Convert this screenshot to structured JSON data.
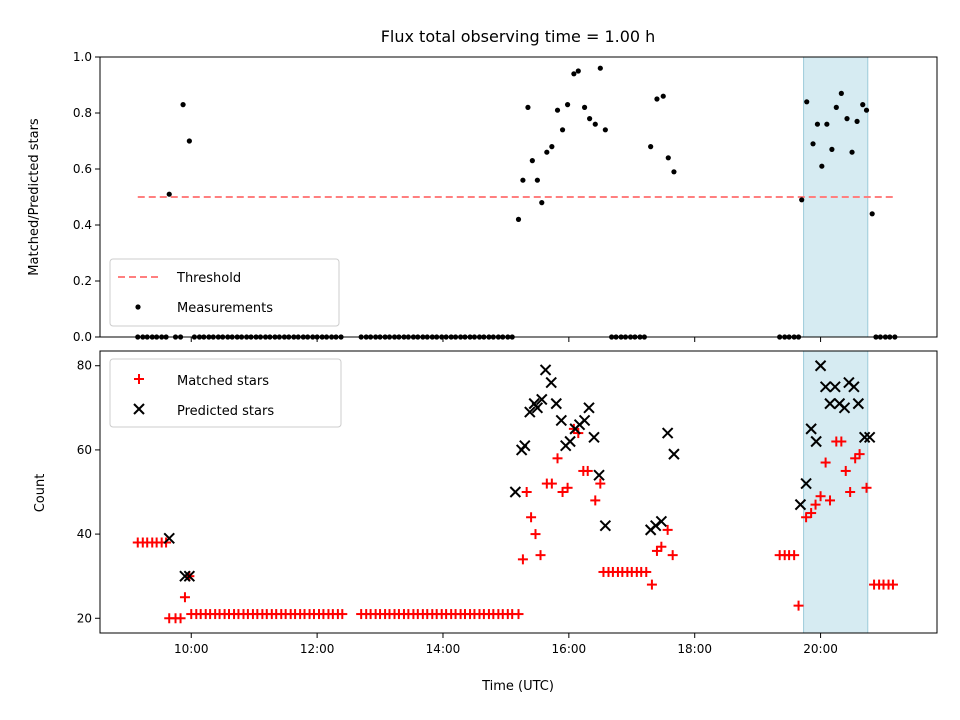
{
  "chart_data": [
    {
      "type": "scatter",
      "title": "Flux total observing time = 1.00 h",
      "ylabel": "Matched/Predicted stars",
      "ylim": [
        0,
        1.0
      ],
      "yticks": [
        "0.0",
        "0.2",
        "0.4",
        "0.6",
        "0.8",
        "1.0"
      ],
      "x_unit": "hours UTC",
      "xlim": [
        8.55,
        21.85
      ],
      "highlight_span": [
        19.73,
        20.75
      ],
      "threshold": {
        "name": "Threshold",
        "value": 0.5,
        "x_range": [
          9.15,
          21.2
        ],
        "color": "#ff7f7f",
        "style": "dashed"
      },
      "series": [
        {
          "name": "Measurements",
          "color": "#000000",
          "marker": "dot",
          "points": [
            [
              9.65,
              0.51
            ],
            [
              9.87,
              0.83
            ],
            [
              9.97,
              0.7
            ],
            [
              15.2,
              0.42
            ],
            [
              15.27,
              0.56
            ],
            [
              15.35,
              0.82
            ],
            [
              15.42,
              0.63
            ],
            [
              15.5,
              0.56
            ],
            [
              15.57,
              0.48
            ],
            [
              15.65,
              0.66
            ],
            [
              15.73,
              0.68
            ],
            [
              15.82,
              0.81
            ],
            [
              15.9,
              0.74
            ],
            [
              15.98,
              0.83
            ],
            [
              16.08,
              0.94
            ],
            [
              16.15,
              0.95
            ],
            [
              16.25,
              0.82
            ],
            [
              16.33,
              0.78
            ],
            [
              16.42,
              0.76
            ],
            [
              16.5,
              0.96
            ],
            [
              16.58,
              0.74
            ],
            [
              17.3,
              0.68
            ],
            [
              17.4,
              0.85
            ],
            [
              17.5,
              0.86
            ],
            [
              17.58,
              0.64
            ],
            [
              17.67,
              0.59
            ],
            [
              19.7,
              0.49
            ],
            [
              19.78,
              0.84
            ],
            [
              19.88,
              0.69
            ],
            [
              19.95,
              0.76
            ],
            [
              20.02,
              0.61
            ],
            [
              20.1,
              0.76
            ],
            [
              20.18,
              0.67
            ],
            [
              20.25,
              0.82
            ],
            [
              20.33,
              0.87
            ],
            [
              20.42,
              0.78
            ],
            [
              20.5,
              0.66
            ],
            [
              20.58,
              0.77
            ],
            [
              20.67,
              0.83
            ],
            [
              20.73,
              0.81
            ],
            [
              20.82,
              0.44
            ]
          ],
          "zero_points": [
            9.15,
            9.23,
            9.3,
            9.38,
            9.45,
            9.53,
            9.6,
            9.75,
            9.83,
            10.05,
            10.13,
            10.2,
            10.28,
            10.35,
            10.43,
            10.5,
            10.58,
            10.65,
            10.73,
            10.8,
            10.88,
            10.95,
            11.03,
            11.1,
            11.18,
            11.25,
            11.33,
            11.4,
            11.48,
            11.55,
            11.63,
            11.7,
            11.78,
            11.85,
            11.93,
            12.0,
            12.08,
            12.15,
            12.23,
            12.3,
            12.38,
            12.7,
            12.78,
            12.85,
            12.93,
            13.0,
            13.08,
            13.15,
            13.23,
            13.3,
            13.38,
            13.45,
            13.53,
            13.6,
            13.68,
            13.75,
            13.83,
            13.9,
            13.98,
            14.05,
            14.13,
            14.2,
            14.28,
            14.35,
            14.43,
            14.5,
            14.58,
            14.65,
            14.73,
            14.8,
            14.88,
            14.95,
            15.03,
            15.1,
            16.68,
            16.75,
            16.83,
            16.9,
            16.98,
            17.05,
            17.13,
            17.2,
            19.35,
            19.43,
            19.5,
            19.58,
            19.65,
            20.88,
            20.95,
            21.03,
            21.1,
            21.18
          ]
        }
      ],
      "legend": {
        "placement": "lower-left",
        "entries": [
          "Threshold",
          "Measurements"
        ]
      }
    },
    {
      "type": "scatter",
      "xlabel": "Time (UTC)",
      "ylabel": "Count",
      "ylim": [
        16.5,
        83.5
      ],
      "yticks": [
        "20",
        "40",
        "60",
        "80"
      ],
      "x_unit": "hours UTC",
      "xlim": [
        8.55,
        21.85
      ],
      "xticks": [
        {
          "value": 10,
          "label": "10:00"
        },
        {
          "value": 12,
          "label": "12:00"
        },
        {
          "value": 14,
          "label": "14:00"
        },
        {
          "value": 16,
          "label": "16:00"
        },
        {
          "value": 18,
          "label": "18:00"
        },
        {
          "value": 20,
          "label": "20:00"
        }
      ],
      "highlight_span": [
        19.73,
        20.75
      ],
      "series": [
        {
          "name": "Matched stars",
          "color": "#ff0000",
          "marker": "plus",
          "points": [
            [
              9.15,
              38
            ],
            [
              9.23,
              38
            ],
            [
              9.3,
              38
            ],
            [
              9.38,
              38
            ],
            [
              9.45,
              38
            ],
            [
              9.53,
              38
            ],
            [
              9.6,
              38
            ],
            [
              9.65,
              20
            ],
            [
              9.75,
              20
            ],
            [
              9.83,
              20
            ],
            [
              9.9,
              25
            ],
            [
              9.97,
              30
            ],
            [
              10.0,
              21
            ],
            [
              10.08,
              21
            ],
            [
              10.15,
              21
            ],
            [
              10.23,
              21
            ],
            [
              10.3,
              21
            ],
            [
              10.38,
              21
            ],
            [
              10.45,
              21
            ],
            [
              10.53,
              21
            ],
            [
              10.6,
              21
            ],
            [
              10.68,
              21
            ],
            [
              10.75,
              21
            ],
            [
              10.83,
              21
            ],
            [
              10.9,
              21
            ],
            [
              10.98,
              21
            ],
            [
              11.05,
              21
            ],
            [
              11.13,
              21
            ],
            [
              11.2,
              21
            ],
            [
              11.28,
              21
            ],
            [
              11.35,
              21
            ],
            [
              11.43,
              21
            ],
            [
              11.5,
              21
            ],
            [
              11.58,
              21
            ],
            [
              11.65,
              21
            ],
            [
              11.73,
              21
            ],
            [
              11.8,
              21
            ],
            [
              11.88,
              21
            ],
            [
              11.95,
              21
            ],
            [
              12.03,
              21
            ],
            [
              12.1,
              21
            ],
            [
              12.18,
              21
            ],
            [
              12.25,
              21
            ],
            [
              12.33,
              21
            ],
            [
              12.4,
              21
            ],
            [
              12.7,
              21
            ],
            [
              12.78,
              21
            ],
            [
              12.85,
              21
            ],
            [
              12.93,
              21
            ],
            [
              13.0,
              21
            ],
            [
              13.08,
              21
            ],
            [
              13.15,
              21
            ],
            [
              13.23,
              21
            ],
            [
              13.3,
              21
            ],
            [
              13.38,
              21
            ],
            [
              13.45,
              21
            ],
            [
              13.53,
              21
            ],
            [
              13.6,
              21
            ],
            [
              13.68,
              21
            ],
            [
              13.75,
              21
            ],
            [
              13.83,
              21
            ],
            [
              13.9,
              21
            ],
            [
              13.98,
              21
            ],
            [
              14.05,
              21
            ],
            [
              14.13,
              21
            ],
            [
              14.2,
              21
            ],
            [
              14.28,
              21
            ],
            [
              14.35,
              21
            ],
            [
              14.43,
              21
            ],
            [
              14.5,
              21
            ],
            [
              14.58,
              21
            ],
            [
              14.65,
              21
            ],
            [
              14.73,
              21
            ],
            [
              14.8,
              21
            ],
            [
              14.88,
              21
            ],
            [
              14.95,
              21
            ],
            [
              15.03,
              21
            ],
            [
              15.1,
              21
            ],
            [
              15.2,
              21
            ],
            [
              15.27,
              34
            ],
            [
              15.33,
              50
            ],
            [
              15.4,
              44
            ],
            [
              15.47,
              40
            ],
            [
              15.55,
              35
            ],
            [
              15.65,
              52
            ],
            [
              15.73,
              52
            ],
            [
              15.82,
              58
            ],
            [
              15.9,
              50
            ],
            [
              15.98,
              51
            ],
            [
              16.08,
              65
            ],
            [
              16.15,
              64
            ],
            [
              16.23,
              55
            ],
            [
              16.3,
              55
            ],
            [
              16.42,
              48
            ],
            [
              16.5,
              52
            ],
            [
              16.55,
              31
            ],
            [
              16.63,
              31
            ],
            [
              16.7,
              31
            ],
            [
              16.78,
              31
            ],
            [
              16.85,
              31
            ],
            [
              16.93,
              31
            ],
            [
              17.0,
              31
            ],
            [
              17.08,
              31
            ],
            [
              17.15,
              31
            ],
            [
              17.23,
              31
            ],
            [
              17.32,
              28
            ],
            [
              17.4,
              36
            ],
            [
              17.47,
              37
            ],
            [
              17.57,
              41
            ],
            [
              17.65,
              35
            ],
            [
              19.35,
              35
            ],
            [
              19.43,
              35
            ],
            [
              19.5,
              35
            ],
            [
              19.58,
              35
            ],
            [
              19.65,
              23
            ],
            [
              19.77,
              44
            ],
            [
              19.85,
              45
            ],
            [
              19.92,
              47
            ],
            [
              20.0,
              49
            ],
            [
              20.08,
              57
            ],
            [
              20.15,
              48
            ],
            [
              20.25,
              62
            ],
            [
              20.33,
              62
            ],
            [
              20.4,
              55
            ],
            [
              20.47,
              50
            ],
            [
              20.55,
              58
            ],
            [
              20.62,
              59
            ],
            [
              20.73,
              51
            ],
            [
              20.85,
              28
            ],
            [
              20.93,
              28
            ],
            [
              21.0,
              28
            ],
            [
              21.08,
              28
            ],
            [
              21.15,
              28
            ]
          ]
        },
        {
          "name": "Predicted stars",
          "color": "#000000",
          "marker": "x",
          "points": [
            [
              9.65,
              39
            ],
            [
              9.9,
              30
            ],
            [
              9.97,
              30
            ],
            [
              15.15,
              50
            ],
            [
              15.25,
              60
            ],
            [
              15.3,
              61
            ],
            [
              15.38,
              69
            ],
            [
              15.45,
              71
            ],
            [
              15.5,
              70
            ],
            [
              15.57,
              72
            ],
            [
              15.63,
              79
            ],
            [
              15.72,
              76
            ],
            [
              15.8,
              71
            ],
            [
              15.88,
              67
            ],
            [
              15.95,
              61
            ],
            [
              16.02,
              62
            ],
            [
              16.1,
              65
            ],
            [
              16.17,
              66
            ],
            [
              16.25,
              67
            ],
            [
              16.32,
              70
            ],
            [
              16.4,
              63
            ],
            [
              16.48,
              54
            ],
            [
              16.58,
              42
            ],
            [
              17.3,
              41
            ],
            [
              17.38,
              42
            ],
            [
              17.47,
              43
            ],
            [
              17.57,
              64
            ],
            [
              17.67,
              59
            ],
            [
              19.68,
              47
            ],
            [
              19.77,
              52
            ],
            [
              19.85,
              65
            ],
            [
              19.93,
              62
            ],
            [
              20.0,
              80
            ],
            [
              20.08,
              75
            ],
            [
              20.15,
              71
            ],
            [
              20.23,
              75
            ],
            [
              20.3,
              71
            ],
            [
              20.38,
              70
            ],
            [
              20.45,
              76
            ],
            [
              20.53,
              75
            ],
            [
              20.6,
              71
            ],
            [
              20.7,
              63
            ],
            [
              20.78,
              63
            ]
          ]
        }
      ],
      "legend": {
        "placement": "top-left",
        "entries": [
          "Matched stars",
          "Predicted stars"
        ]
      }
    }
  ]
}
